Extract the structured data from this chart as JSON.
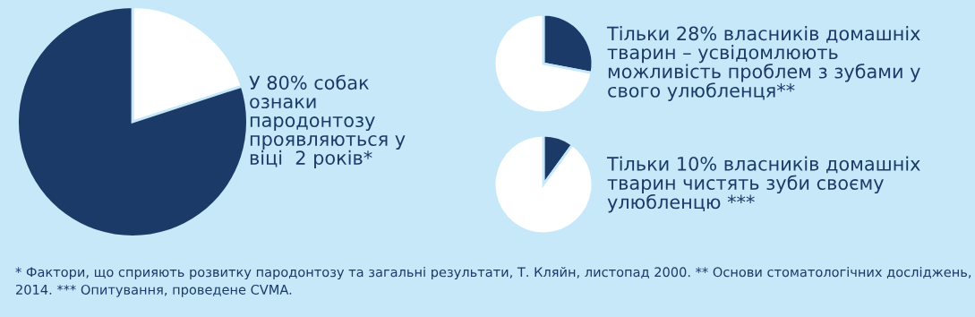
{
  "chart_data": [
    {
      "type": "pie",
      "title": "У 80% собак\nознаки\nпародонтозу\nпроявляються у\nвіці  2 років*",
      "categories": [
        null,
        null
      ],
      "values": [
        20,
        80
      ],
      "colors": [
        "#ffffff",
        "#1b3a68"
      ],
      "annotations": [
        "* Фактори, що сприяють розвитку пародонтозу та загальні результати, Т. Кляйн, листопад 2000. ** Основи стоматологічних досліджень, 2014. *** Опитування, проведене CVMA."
      ]
    },
    {
      "type": "pie",
      "title": "Тільки 28% власників домашніх\nтварин – усвідомлюють\nможливість проблем з зубами у\nсвого улюбленця**",
      "categories": [
        null,
        null
      ],
      "values": [
        28,
        72
      ],
      "colors": [
        "#1b3a68",
        "#ffffff"
      ]
    },
    {
      "type": "pie",
      "title": "Тільки 10% власників домашніх\nтварин чистять зуби своєму\nулюбленцю ***",
      "categories": [
        null,
        null
      ],
      "values": [
        10,
        90
      ],
      "colors": [
        "#1b3a68",
        "#ffffff"
      ]
    }
  ]
}
